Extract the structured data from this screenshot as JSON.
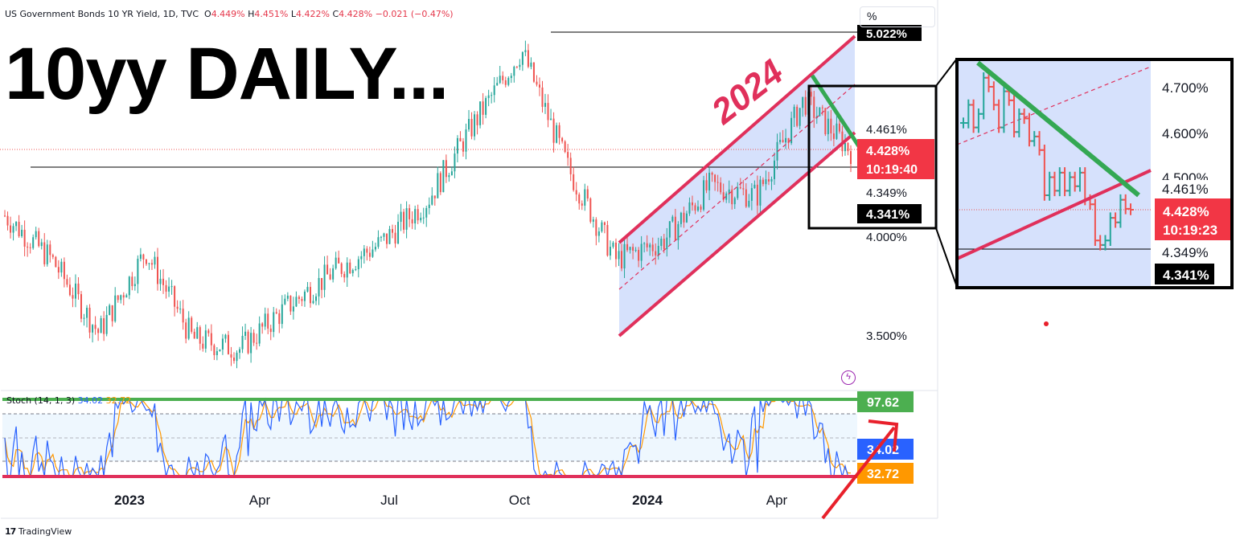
{
  "header": {
    "symbol": "US Government Bonds 10 YR Yield, 1D, TVC",
    "open_label": "O",
    "open": "4.449%",
    "high_label": "H",
    "high": "4.451%",
    "low_label": "L",
    "low": "4.422%",
    "close_label": "C",
    "close": "4.428%",
    "change": "−0.021 (−0.47%)"
  },
  "overlay_title": "10yy DAILY...",
  "channel_label": "2024",
  "scale_button": "%",
  "price_axis": {
    "ticks": [
      "4.461%",
      "4.349%",
      "4.000%",
      "3.500%"
    ],
    "badge_high": "5.022%",
    "badge_current": "4.428%",
    "badge_timer": "10:19:40",
    "badge_low": "4.341%"
  },
  "zoom_inset": {
    "ticks": [
      "4.700%",
      "4.600%",
      "4.500%",
      "4.461%",
      "4.349%"
    ],
    "badge_current": "4.428%",
    "badge_timer": "10:19:23",
    "badge_low": "4.341%"
  },
  "stoch": {
    "label": "Stoch (14, 1, 3)",
    "k_value": "34.02",
    "d_value": "32.72",
    "overbought_badge": "97.62"
  },
  "time_axis": [
    "2023",
    "Apr",
    "Jul",
    "Oct",
    "2024",
    "Apr"
  ],
  "branding": "TradingView",
  "colors": {
    "up": "#26a69a",
    "down": "#ef5350",
    "channel": "#e0305b",
    "trend": "#34a853",
    "fill": "#cfdcfb",
    "k": "#2962ff",
    "d": "#ff9800",
    "badge_red": "#f23645",
    "badge_black": "#000000",
    "badge_green": "#4caf50"
  },
  "chart_data": {
    "type": "candlestick",
    "title": "US Government Bonds 10 YR Yield, 1D, TVC",
    "y_unit": "%",
    "yrange": [
      3.3,
      5.15
    ],
    "x_labels": [
      "2023",
      "Apr",
      "Jul",
      "Oct",
      "2024",
      "Apr"
    ],
    "price_path": [
      {
        "month": "2022-11",
        "close": 4.1
      },
      {
        "month": "2022-12",
        "close": 3.88
      },
      {
        "month": "2023-01",
        "close": 3.51
      },
      {
        "month": "2023-02",
        "close": 3.92
      },
      {
        "month": "2023-03",
        "close": 3.48
      },
      {
        "month": "2023-04",
        "close": 3.43
      },
      {
        "month": "2023-05",
        "close": 3.64
      },
      {
        "month": "2023-06",
        "close": 3.82
      },
      {
        "month": "2023-07",
        "close": 3.96
      },
      {
        "month": "2023-08",
        "close": 4.18
      },
      {
        "month": "2023-09",
        "close": 4.57
      },
      {
        "month": "2023-10",
        "close": 4.93
      },
      {
        "month": "2023-11",
        "close": 4.33
      },
      {
        "month": "2023-12",
        "close": 3.88
      },
      {
        "month": "2024-01",
        "close": 3.97
      },
      {
        "month": "2024-02",
        "close": 4.25
      },
      {
        "month": "2024-03",
        "close": 4.2
      },
      {
        "month": "2024-04",
        "close": 4.68
      },
      {
        "month": "2024-05",
        "close": 4.428
      }
    ],
    "levels": {
      "high": 5.022,
      "resistance": 4.461,
      "support": 4.349,
      "low_badge": 4.341,
      "current": 4.428
    },
    "stochastic": {
      "params": "14, 1, 3",
      "k": 34.02,
      "d": 32.72,
      "upper": 80,
      "lower": 20
    }
  }
}
